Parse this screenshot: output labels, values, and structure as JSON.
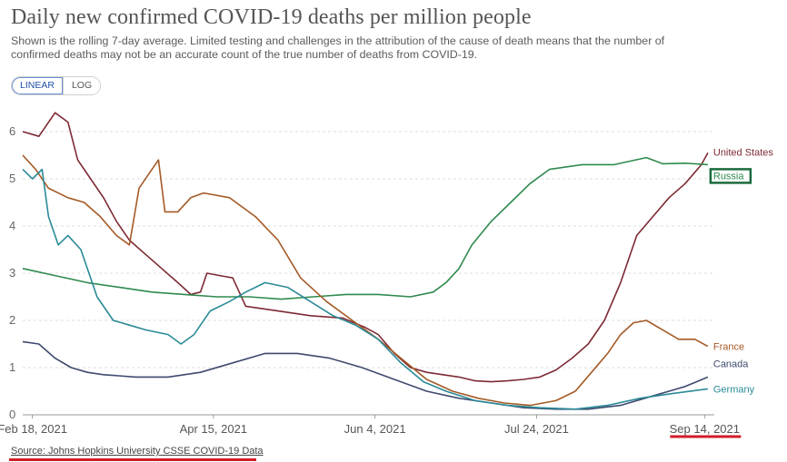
{
  "title": "Daily new confirmed COVID-19 deaths per million people",
  "subtitle": "Shown is the rolling 7-day average. Limited testing and challenges in the attribution of the cause of death means that the number of confirmed deaths may not be an accurate count of the true number of deaths from COVID-19.",
  "controls": {
    "linear_label": "LINEAR",
    "log_label": "LOG"
  },
  "source": "Source: Johns Hopkins University CSSE COVID-19 Data",
  "colors": {
    "highlight_red": "#d21d28",
    "russia_box": "#1a6b3c"
  },
  "chart_data": {
    "type": "line",
    "title": "Daily new confirmed COVID-19 deaths per million people",
    "xlabel": "",
    "ylabel": "",
    "x_range": [
      "2021-02-15",
      "2021-09-17"
    ],
    "ylim": [
      0,
      6.4
    ],
    "yticks": [
      0,
      1,
      2,
      3,
      4,
      5,
      6
    ],
    "ytick_labels": [
      "0",
      "1",
      "2",
      "3",
      "4",
      "5",
      "6"
    ],
    "xticks": [
      "2021-02-18",
      "2021-04-15",
      "2021-06-04",
      "2021-07-24",
      "2021-09-14"
    ],
    "xtick_labels": [
      "Feb 18, 2021",
      "Apr 15, 2021",
      "Jun 4, 2021",
      "Jul 24, 2021",
      "Sep 14, 2021"
    ],
    "grid": "horizontal dashed",
    "legend": "end-of-line labels",
    "series": [
      {
        "name": "United States",
        "color": "#7d2a34",
        "points": [
          [
            "2021-02-15",
            6.0
          ],
          [
            "2021-02-20",
            5.9
          ],
          [
            "2021-02-25",
            6.4
          ],
          [
            "2021-03-01",
            6.2
          ],
          [
            "2021-03-04",
            5.4
          ],
          [
            "2021-03-08",
            5.0
          ],
          [
            "2021-03-12",
            4.6
          ],
          [
            "2021-03-16",
            4.1
          ],
          [
            "2021-03-20",
            3.7
          ],
          [
            "2021-03-25",
            3.4
          ],
          [
            "2021-03-30",
            3.1
          ],
          [
            "2021-04-04",
            2.8
          ],
          [
            "2021-04-08",
            2.55
          ],
          [
            "2021-04-11",
            2.6
          ],
          [
            "2021-04-13",
            3.0
          ],
          [
            "2021-04-17",
            2.95
          ],
          [
            "2021-04-21",
            2.9
          ],
          [
            "2021-04-25",
            2.3
          ],
          [
            "2021-05-05",
            2.2
          ],
          [
            "2021-05-15",
            2.1
          ],
          [
            "2021-05-25",
            2.05
          ],
          [
            "2021-06-01",
            1.85
          ],
          [
            "2021-06-05",
            1.7
          ],
          [
            "2021-06-10",
            1.3
          ],
          [
            "2021-06-15",
            1.0
          ],
          [
            "2021-06-20",
            0.9
          ],
          [
            "2021-06-25",
            0.85
          ],
          [
            "2021-06-30",
            0.8
          ],
          [
            "2021-07-05",
            0.72
          ],
          [
            "2021-07-10",
            0.7
          ],
          [
            "2021-07-15",
            0.72
          ],
          [
            "2021-07-20",
            0.75
          ],
          [
            "2021-07-25",
            0.8
          ],
          [
            "2021-07-30",
            0.95
          ],
          [
            "2021-08-04",
            1.2
          ],
          [
            "2021-08-09",
            1.5
          ],
          [
            "2021-08-14",
            2.0
          ],
          [
            "2021-08-19",
            2.8
          ],
          [
            "2021-08-24",
            3.8
          ],
          [
            "2021-08-29",
            4.2
          ],
          [
            "2021-09-03",
            4.6
          ],
          [
            "2021-09-08",
            4.9
          ],
          [
            "2021-09-13",
            5.3
          ],
          [
            "2021-09-15",
            5.55
          ]
        ]
      },
      {
        "name": "Russia",
        "color": "#2f8a4e",
        "points": [
          [
            "2021-02-15",
            3.1
          ],
          [
            "2021-02-25",
            2.95
          ],
          [
            "2021-03-07",
            2.8
          ],
          [
            "2021-03-17",
            2.7
          ],
          [
            "2021-03-27",
            2.6
          ],
          [
            "2021-04-06",
            2.55
          ],
          [
            "2021-04-16",
            2.5
          ],
          [
            "2021-04-26",
            2.5
          ],
          [
            "2021-05-06",
            2.45
          ],
          [
            "2021-05-16",
            2.5
          ],
          [
            "2021-05-26",
            2.55
          ],
          [
            "2021-06-05",
            2.55
          ],
          [
            "2021-06-15",
            2.5
          ],
          [
            "2021-06-22",
            2.6
          ],
          [
            "2021-06-26",
            2.8
          ],
          [
            "2021-06-30",
            3.1
          ],
          [
            "2021-07-04",
            3.6
          ],
          [
            "2021-07-10",
            4.1
          ],
          [
            "2021-07-16",
            4.5
          ],
          [
            "2021-07-22",
            4.9
          ],
          [
            "2021-07-28",
            5.2
          ],
          [
            "2021-08-07",
            5.3
          ],
          [
            "2021-08-17",
            5.3
          ],
          [
            "2021-08-27",
            5.45
          ],
          [
            "2021-09-01",
            5.32
          ],
          [
            "2021-09-08",
            5.33
          ],
          [
            "2021-09-15",
            5.3
          ]
        ]
      },
      {
        "name": "France",
        "color": "#a55a26",
        "points": [
          [
            "2021-02-15",
            5.5
          ],
          [
            "2021-02-19",
            5.2
          ],
          [
            "2021-02-23",
            4.8
          ],
          [
            "2021-03-01",
            4.6
          ],
          [
            "2021-03-06",
            4.5
          ],
          [
            "2021-03-11",
            4.2
          ],
          [
            "2021-03-16",
            3.8
          ],
          [
            "2021-03-20",
            3.6
          ],
          [
            "2021-03-23",
            4.8
          ],
          [
            "2021-03-27",
            5.2
          ],
          [
            "2021-03-29",
            5.4
          ],
          [
            "2021-03-31",
            4.3
          ],
          [
            "2021-04-04",
            4.3
          ],
          [
            "2021-04-08",
            4.6
          ],
          [
            "2021-04-12",
            4.7
          ],
          [
            "2021-04-20",
            4.6
          ],
          [
            "2021-04-28",
            4.2
          ],
          [
            "2021-05-05",
            3.7
          ],
          [
            "2021-05-12",
            2.9
          ],
          [
            "2021-05-20",
            2.4
          ],
          [
            "2021-05-28",
            2.0
          ],
          [
            "2021-06-05",
            1.6
          ],
          [
            "2021-06-12",
            1.2
          ],
          [
            "2021-06-20",
            0.75
          ],
          [
            "2021-06-28",
            0.5
          ],
          [
            "2021-07-06",
            0.35
          ],
          [
            "2021-07-14",
            0.25
          ],
          [
            "2021-07-22",
            0.2
          ],
          [
            "2021-07-30",
            0.3
          ],
          [
            "2021-08-05",
            0.5
          ],
          [
            "2021-08-10",
            0.9
          ],
          [
            "2021-08-15",
            1.3
          ],
          [
            "2021-08-19",
            1.7
          ],
          [
            "2021-08-23",
            1.95
          ],
          [
            "2021-08-27",
            2.0
          ],
          [
            "2021-09-01",
            1.8
          ],
          [
            "2021-09-06",
            1.6
          ],
          [
            "2021-09-11",
            1.6
          ],
          [
            "2021-09-15",
            1.45
          ]
        ]
      },
      {
        "name": "Canada",
        "color": "#3e4a6e",
        "points": [
          [
            "2021-02-15",
            1.55
          ],
          [
            "2021-02-20",
            1.5
          ],
          [
            "2021-02-25",
            1.2
          ],
          [
            "2021-03-02",
            1.0
          ],
          [
            "2021-03-07",
            0.9
          ],
          [
            "2021-03-12",
            0.85
          ],
          [
            "2021-03-22",
            0.8
          ],
          [
            "2021-04-01",
            0.8
          ],
          [
            "2021-04-11",
            0.9
          ],
          [
            "2021-04-21",
            1.1
          ],
          [
            "2021-05-01",
            1.3
          ],
          [
            "2021-05-11",
            1.3
          ],
          [
            "2021-05-21",
            1.2
          ],
          [
            "2021-05-31",
            1.0
          ],
          [
            "2021-06-10",
            0.75
          ],
          [
            "2021-06-20",
            0.5
          ],
          [
            "2021-06-30",
            0.35
          ],
          [
            "2021-07-10",
            0.25
          ],
          [
            "2021-07-20",
            0.15
          ],
          [
            "2021-07-30",
            0.12
          ],
          [
            "2021-08-09",
            0.12
          ],
          [
            "2021-08-19",
            0.2
          ],
          [
            "2021-08-29",
            0.4
          ],
          [
            "2021-09-03",
            0.5
          ],
          [
            "2021-09-08",
            0.6
          ],
          [
            "2021-09-15",
            0.8
          ]
        ]
      },
      {
        "name": "Germany",
        "color": "#2a8a97",
        "points": [
          [
            "2021-02-15",
            5.2
          ],
          [
            "2021-02-18",
            5.0
          ],
          [
            "2021-02-21",
            5.2
          ],
          [
            "2021-02-23",
            4.2
          ],
          [
            "2021-02-26",
            3.6
          ],
          [
            "2021-03-01",
            3.8
          ],
          [
            "2021-03-05",
            3.5
          ],
          [
            "2021-03-10",
            2.5
          ],
          [
            "2021-03-15",
            2.0
          ],
          [
            "2021-03-20",
            1.9
          ],
          [
            "2021-03-25",
            1.8
          ],
          [
            "2021-04-01",
            1.7
          ],
          [
            "2021-04-05",
            1.5
          ],
          [
            "2021-04-09",
            1.7
          ],
          [
            "2021-04-14",
            2.2
          ],
          [
            "2021-04-20",
            2.4
          ],
          [
            "2021-04-25",
            2.6
          ],
          [
            "2021-05-01",
            2.8
          ],
          [
            "2021-05-08",
            2.7
          ],
          [
            "2021-05-15",
            2.4
          ],
          [
            "2021-05-22",
            2.1
          ],
          [
            "2021-05-29",
            1.9
          ],
          [
            "2021-06-05",
            1.6
          ],
          [
            "2021-06-12",
            1.1
          ],
          [
            "2021-06-19",
            0.7
          ],
          [
            "2021-06-26",
            0.5
          ],
          [
            "2021-07-05",
            0.3
          ],
          [
            "2021-07-15",
            0.2
          ],
          [
            "2021-07-25",
            0.15
          ],
          [
            "2021-08-05",
            0.12
          ],
          [
            "2021-08-15",
            0.2
          ],
          [
            "2021-08-25",
            0.35
          ],
          [
            "2021-09-04",
            0.45
          ],
          [
            "2021-09-15",
            0.55
          ]
        ]
      }
    ]
  }
}
